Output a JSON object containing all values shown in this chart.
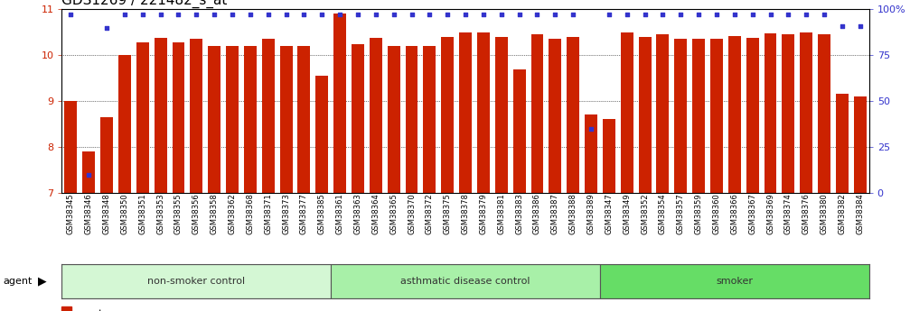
{
  "title": "GDS1269 / 221482_s_at",
  "samples": [
    "GSM38345",
    "GSM38346",
    "GSM38348",
    "GSM38350",
    "GSM38351",
    "GSM38353",
    "GSM38355",
    "GSM38356",
    "GSM38358",
    "GSM38362",
    "GSM38368",
    "GSM38371",
    "GSM38373",
    "GSM38377",
    "GSM38385",
    "GSM38361",
    "GSM38363",
    "GSM38364",
    "GSM38365",
    "GSM38370",
    "GSM38372",
    "GSM38375",
    "GSM38378",
    "GSM38379",
    "GSM38381",
    "GSM38383",
    "GSM38386",
    "GSM38387",
    "GSM38388",
    "GSM38389",
    "GSM38347",
    "GSM38349",
    "GSM38352",
    "GSM38354",
    "GSM38357",
    "GSM38359",
    "GSM38360",
    "GSM38366",
    "GSM38367",
    "GSM38369",
    "GSM38374",
    "GSM38376",
    "GSM38380",
    "GSM38382",
    "GSM38384"
  ],
  "bar_values": [
    9.0,
    7.9,
    8.65,
    10.01,
    10.28,
    10.38,
    10.28,
    10.35,
    10.2,
    10.2,
    10.2,
    10.35,
    10.2,
    10.2,
    9.55,
    10.9,
    10.25,
    10.38,
    10.2,
    10.2,
    10.2,
    10.4,
    10.5,
    10.5,
    10.4,
    9.7,
    10.45,
    10.35,
    10.4,
    8.7,
    8.6,
    10.5,
    10.4,
    10.45,
    10.35,
    10.35,
    10.35,
    10.42,
    10.38,
    10.48,
    10.45,
    10.5,
    10.45,
    9.15,
    9.1
  ],
  "percentile_values": [
    97,
    10,
    90,
    97,
    97,
    97,
    97,
    97,
    97,
    97,
    97,
    97,
    97,
    97,
    97,
    97,
    97,
    97,
    97,
    97,
    97,
    97,
    97,
    97,
    97,
    97,
    97,
    97,
    97,
    35,
    97,
    97,
    97,
    97,
    97,
    97,
    97,
    97,
    97,
    97,
    97,
    97,
    97,
    91,
    91
  ],
  "groups": [
    {
      "label": "non-smoker control",
      "start": 0,
      "end": 15,
      "color": "#d4f7d4"
    },
    {
      "label": "asthmatic disease control",
      "start": 15,
      "end": 30,
      "color": "#a8f0a8"
    },
    {
      "label": "smoker",
      "start": 30,
      "end": 45,
      "color": "#66dd66"
    }
  ],
  "ylim_left": [
    7,
    11
  ],
  "ylim_right": [
    0,
    100
  ],
  "yticks_left": [
    7,
    8,
    9,
    10,
    11
  ],
  "yticks_right": [
    0,
    25,
    50,
    75,
    100
  ],
  "bar_color": "#cc2200",
  "dot_color": "#3333cc",
  "background_color": "#ffffff",
  "title_fontsize": 11,
  "xlabel_fontsize": 6,
  "tick_label_color_left": "#cc2200",
  "tick_label_color_right": "#3333cc"
}
